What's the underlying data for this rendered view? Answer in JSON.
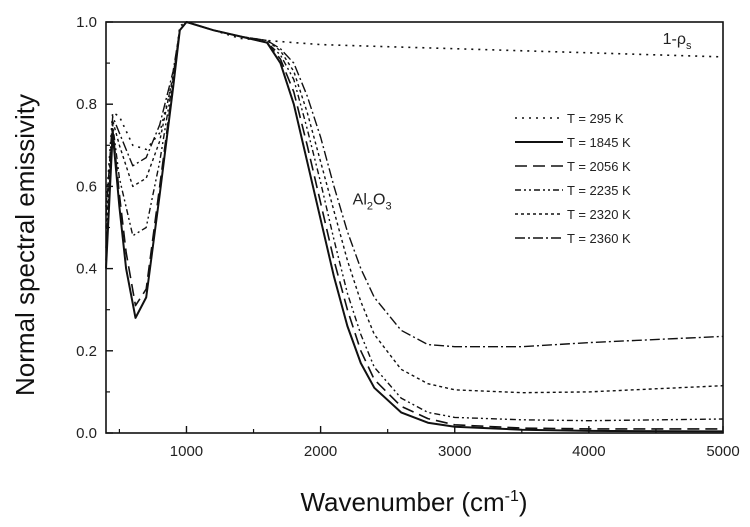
{
  "chart_data": {
    "type": "line",
    "title": "",
    "xlabel_main": "Wavenumber (cm",
    "xlabel_sup": "-1",
    "xlabel_end": ")",
    "ylabel": "Normal spectral emissivity",
    "xlim": [
      400,
      5000
    ],
    "ylim": [
      0,
      1.0
    ],
    "x_ticks": [
      1000,
      2000,
      3000,
      4000,
      5000
    ],
    "x_tick_labels": [
      "1000",
      "2000",
      "3000",
      "4000",
      "5000"
    ],
    "y_ticks": [
      0.0,
      0.2,
      0.4,
      0.6,
      0.8,
      1.0
    ],
    "y_tick_labels": [
      "0.0",
      "0.2",
      "0.4",
      "0.6",
      "0.8",
      "1.0"
    ],
    "grid": false,
    "legend_position": "right-middle",
    "annotations": [
      {
        "text_main": "1-ρ",
        "text_sub": "s",
        "x": 4550,
        "y": 0.985
      },
      {
        "text_main": "Al",
        "text_sub1": "2",
        "text_mid": "O",
        "text_sub2": "3",
        "x": 2500,
        "y": 0.6
      }
    ],
    "series": [
      {
        "name": "T = 295 K",
        "dash": "2,5",
        "width": 1.6,
        "points": [
          [
            400,
            0.55
          ],
          [
            450,
            0.78
          ],
          [
            500,
            0.77
          ],
          [
            600,
            0.7
          ],
          [
            700,
            0.69
          ],
          [
            800,
            0.73
          ],
          [
            900,
            0.86
          ],
          [
            950,
            0.99
          ],
          [
            1000,
            1.0
          ],
          [
            1200,
            0.98
          ],
          [
            1400,
            0.96
          ],
          [
            1600,
            0.955
          ],
          [
            1800,
            0.95
          ],
          [
            2000,
            0.945
          ],
          [
            2500,
            0.94
          ],
          [
            3000,
            0.935
          ],
          [
            4000,
            0.925
          ],
          [
            5000,
            0.915
          ]
        ]
      },
      {
        "name": "T = 1845 K",
        "dash": "",
        "width": 2.0,
        "points": [
          [
            400,
            0.4
          ],
          [
            450,
            0.73
          ],
          [
            500,
            0.55
          ],
          [
            550,
            0.4
          ],
          [
            620,
            0.28
          ],
          [
            700,
            0.33
          ],
          [
            800,
            0.58
          ],
          [
            900,
            0.84
          ],
          [
            950,
            0.98
          ],
          [
            1000,
            1.0
          ],
          [
            1200,
            0.98
          ],
          [
            1400,
            0.965
          ],
          [
            1600,
            0.95
          ],
          [
            1700,
            0.9
          ],
          [
            1800,
            0.8
          ],
          [
            1900,
            0.66
          ],
          [
            2000,
            0.52
          ],
          [
            2100,
            0.38
          ],
          [
            2200,
            0.26
          ],
          [
            2300,
            0.17
          ],
          [
            2400,
            0.11
          ],
          [
            2600,
            0.05
          ],
          [
            2800,
            0.025
          ],
          [
            3000,
            0.015
          ],
          [
            3500,
            0.008
          ],
          [
            4000,
            0.005
          ],
          [
            5000,
            0.004
          ]
        ]
      },
      {
        "name": "T = 2056 K",
        "dash": "12,6",
        "width": 1.6,
        "points": [
          [
            400,
            0.42
          ],
          [
            450,
            0.74
          ],
          [
            500,
            0.58
          ],
          [
            550,
            0.44
          ],
          [
            620,
            0.31
          ],
          [
            700,
            0.35
          ],
          [
            800,
            0.6
          ],
          [
            900,
            0.85
          ],
          [
            950,
            0.98
          ],
          [
            1000,
            1.0
          ],
          [
            1200,
            0.98
          ],
          [
            1400,
            0.965
          ],
          [
            1600,
            0.95
          ],
          [
            1700,
            0.91
          ],
          [
            1800,
            0.83
          ],
          [
            1900,
            0.7
          ],
          [
            2000,
            0.56
          ],
          [
            2100,
            0.42
          ],
          [
            2200,
            0.3
          ],
          [
            2300,
            0.2
          ],
          [
            2400,
            0.13
          ],
          [
            2600,
            0.065
          ],
          [
            2800,
            0.035
          ],
          [
            3000,
            0.02
          ],
          [
            3500,
            0.012
          ],
          [
            4000,
            0.01
          ],
          [
            5000,
            0.01
          ]
        ]
      },
      {
        "name": "T = 2235 K",
        "dash": "6,3,2,3,2,3",
        "width": 1.4,
        "points": [
          [
            400,
            0.45
          ],
          [
            450,
            0.75
          ],
          [
            500,
            0.62
          ],
          [
            600,
            0.48
          ],
          [
            700,
            0.5
          ],
          [
            800,
            0.66
          ],
          [
            900,
            0.86
          ],
          [
            950,
            0.98
          ],
          [
            1000,
            1.0
          ],
          [
            1200,
            0.98
          ],
          [
            1400,
            0.965
          ],
          [
            1600,
            0.95
          ],
          [
            1700,
            0.92
          ],
          [
            1800,
            0.86
          ],
          [
            1900,
            0.74
          ],
          [
            2000,
            0.61
          ],
          [
            2100,
            0.47
          ],
          [
            2200,
            0.34
          ],
          [
            2300,
            0.24
          ],
          [
            2400,
            0.16
          ],
          [
            2600,
            0.085
          ],
          [
            2800,
            0.05
          ],
          [
            3000,
            0.038
          ],
          [
            3500,
            0.032
          ],
          [
            4000,
            0.03
          ],
          [
            5000,
            0.034
          ]
        ]
      },
      {
        "name": "T = 2320 K",
        "dash": "3,3",
        "width": 1.4,
        "points": [
          [
            400,
            0.5
          ],
          [
            450,
            0.76
          ],
          [
            500,
            0.7
          ],
          [
            600,
            0.6
          ],
          [
            700,
            0.62
          ],
          [
            800,
            0.71
          ],
          [
            900,
            0.87
          ],
          [
            950,
            0.98
          ],
          [
            1000,
            1.0
          ],
          [
            1200,
            0.98
          ],
          [
            1400,
            0.965
          ],
          [
            1600,
            0.955
          ],
          [
            1700,
            0.93
          ],
          [
            1800,
            0.88
          ],
          [
            1900,
            0.78
          ],
          [
            2000,
            0.66
          ],
          [
            2100,
            0.54
          ],
          [
            2200,
            0.42
          ],
          [
            2300,
            0.32
          ],
          [
            2400,
            0.24
          ],
          [
            2600,
            0.155
          ],
          [
            2800,
            0.12
          ],
          [
            3000,
            0.105
          ],
          [
            3500,
            0.098
          ],
          [
            4000,
            0.1
          ],
          [
            5000,
            0.115
          ]
        ]
      },
      {
        "name": "T = 2360 K",
        "dash": "10,3,2,3",
        "width": 1.4,
        "points": [
          [
            400,
            0.53
          ],
          [
            450,
            0.77
          ],
          [
            500,
            0.73
          ],
          [
            600,
            0.65
          ],
          [
            700,
            0.67
          ],
          [
            800,
            0.75
          ],
          [
            900,
            0.88
          ],
          [
            950,
            0.98
          ],
          [
            1000,
            1.0
          ],
          [
            1200,
            0.98
          ],
          [
            1400,
            0.965
          ],
          [
            1600,
            0.955
          ],
          [
            1700,
            0.935
          ],
          [
            1800,
            0.9
          ],
          [
            1900,
            0.82
          ],
          [
            2000,
            0.72
          ],
          [
            2100,
            0.6
          ],
          [
            2200,
            0.49
          ],
          [
            2300,
            0.4
          ],
          [
            2400,
            0.33
          ],
          [
            2600,
            0.25
          ],
          [
            2800,
            0.215
          ],
          [
            3000,
            0.21
          ],
          [
            3500,
            0.21
          ],
          [
            4000,
            0.22
          ],
          [
            5000,
            0.235
          ]
        ]
      }
    ]
  }
}
